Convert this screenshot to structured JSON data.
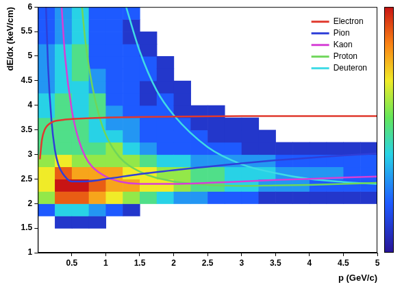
{
  "chart_data": {
    "type": "line",
    "x_label": "p (GeV/c)",
    "y_label": "dE/dx (keV/cm)",
    "xlim": [
      0,
      5
    ],
    "xticks": [
      0.5,
      1,
      1.5,
      2,
      2.5,
      3,
      3.5,
      4,
      4.5,
      5
    ],
    "ylim": [
      1,
      6
    ],
    "yticks": [
      1,
      1.5,
      2,
      2.5,
      3,
      3.5,
      4,
      4.5,
      5,
      5.5,
      6
    ],
    "grid": false,
    "legend": "upper right",
    "marker": "none",
    "line_style": "solid",
    "series": [
      {
        "name": "Electron",
        "color": "#e0392e",
        "x": [
          0.03,
          0.06,
          0.1,
          0.2,
          0.35,
          0.5,
          1,
          2,
          3,
          4,
          5
        ],
        "values": [
          2.9,
          3.3,
          3.5,
          3.65,
          3.7,
          3.72,
          3.75,
          3.77,
          3.78,
          3.78,
          3.78
        ]
      },
      {
        "name": "Pion",
        "color": "#2f3fd8",
        "x": [
          0.12,
          0.15,
          0.2,
          0.25,
          0.3,
          0.4,
          0.5,
          0.7,
          1,
          1.5,
          2,
          2.5,
          3,
          3.5,
          4,
          4.5,
          5
        ],
        "values": [
          6,
          4.8,
          3.7,
          3.1,
          2.8,
          2.55,
          2.45,
          2.45,
          2.5,
          2.6,
          2.68,
          2.75,
          2.82,
          2.88,
          2.93,
          2.98,
          3.02
        ]
      },
      {
        "name": "Kaon",
        "color": "#d63fd6",
        "x": [
          0.35,
          0.4,
          0.5,
          0.6,
          0.7,
          0.8,
          1,
          1.2,
          1.5,
          2,
          2.5,
          3,
          3.5,
          4,
          4.5,
          5
        ],
        "values": [
          6,
          5,
          3.9,
          3.3,
          2.95,
          2.75,
          2.55,
          2.45,
          2.4,
          2.4,
          2.42,
          2.45,
          2.48,
          2.5,
          2.53,
          2.55
        ]
      },
      {
        "name": "Proton",
        "color": "#6fd65a",
        "x": [
          0.65,
          0.7,
          0.8,
          0.9,
          1,
          1.2,
          1.5,
          2,
          2.5,
          3,
          3.5,
          4,
          4.5,
          5
        ],
        "values": [
          6,
          5.3,
          4.4,
          3.8,
          3.4,
          2.95,
          2.65,
          2.45,
          2.38,
          2.36,
          2.37,
          2.38,
          2.4,
          2.42
        ]
      },
      {
        "name": "Deuteron",
        "color": "#3fdbe6",
        "x": [
          1.3,
          1.5,
          1.75,
          2,
          2.5,
          3,
          3.5,
          4,
          4.5,
          5
        ],
        "values": [
          6,
          5.1,
          4.3,
          3.8,
          3.15,
          2.8,
          2.62,
          2.5,
          2.44,
          2.4
        ]
      }
    ],
    "density": {
      "bin_width": 0.25,
      "bin_height": 0.25,
      "range": [
        0,
        10
      ],
      "cells": [
        [
          0,
          1.75,
          2
        ],
        [
          0,
          2,
          6
        ],
        [
          0,
          2.25,
          7
        ],
        [
          0,
          2.5,
          7
        ],
        [
          0,
          2.75,
          6
        ],
        [
          0,
          3,
          5
        ],
        [
          0,
          3.25,
          5
        ],
        [
          0,
          3.5,
          5
        ],
        [
          0,
          3.75,
          4
        ],
        [
          0,
          4,
          4
        ],
        [
          0,
          4.25,
          3
        ],
        [
          0,
          4.5,
          3
        ],
        [
          0,
          4.75,
          3
        ],
        [
          0,
          5,
          3
        ],
        [
          0,
          5.25,
          2
        ],
        [
          0,
          5.5,
          2
        ],
        [
          0,
          5.75,
          2
        ],
        [
          0.25,
          1.5,
          1
        ],
        [
          0.25,
          1.75,
          4
        ],
        [
          0.25,
          2,
          9
        ],
        [
          0.25,
          2.25,
          10
        ],
        [
          0.25,
          2.5,
          9
        ],
        [
          0.25,
          2.75,
          7
        ],
        [
          0.25,
          3,
          5
        ],
        [
          0.25,
          3.25,
          5
        ],
        [
          0.25,
          3.5,
          5
        ],
        [
          0.25,
          3.75,
          5
        ],
        [
          0.25,
          4,
          5
        ],
        [
          0.25,
          4.25,
          4
        ],
        [
          0.25,
          4.5,
          4
        ],
        [
          0.25,
          4.75,
          4
        ],
        [
          0.25,
          5,
          4
        ],
        [
          0.25,
          5.25,
          3
        ],
        [
          0.25,
          5.5,
          3
        ],
        [
          0.25,
          5.75,
          3
        ],
        [
          0.5,
          1.5,
          1
        ],
        [
          0.5,
          1.75,
          4
        ],
        [
          0.5,
          2,
          9
        ],
        [
          0.5,
          2.25,
          10
        ],
        [
          0.5,
          2.5,
          8
        ],
        [
          0.5,
          2.75,
          6
        ],
        [
          0.5,
          3,
          5
        ],
        [
          0.5,
          3.25,
          5
        ],
        [
          0.5,
          3.5,
          5
        ],
        [
          0.5,
          3.75,
          4
        ],
        [
          0.5,
          4,
          4
        ],
        [
          0.5,
          4.25,
          4
        ],
        [
          0.5,
          4.5,
          5
        ],
        [
          0.5,
          4.75,
          5
        ],
        [
          0.5,
          5,
          5
        ],
        [
          0.5,
          5.25,
          4
        ],
        [
          0.5,
          5.5,
          4
        ],
        [
          0.5,
          5.75,
          4
        ],
        [
          0.75,
          1.5,
          1
        ],
        [
          0.75,
          1.75,
          3
        ],
        [
          0.75,
          2,
          8
        ],
        [
          0.75,
          2.25,
          9
        ],
        [
          0.75,
          2.5,
          8
        ],
        [
          0.75,
          2.75,
          6
        ],
        [
          0.75,
          3,
          5
        ],
        [
          0.75,
          3.25,
          4
        ],
        [
          0.75,
          3.5,
          4
        ],
        [
          0.75,
          3.75,
          5
        ],
        [
          0.75,
          4,
          5
        ],
        [
          0.75,
          4.25,
          3
        ],
        [
          0.75,
          4.5,
          3
        ],
        [
          0.75,
          4.75,
          2
        ],
        [
          0.75,
          5,
          2
        ],
        [
          0.75,
          5.25,
          2
        ],
        [
          0.75,
          5.5,
          2
        ],
        [
          0.75,
          5.75,
          2
        ],
        [
          1,
          1.75,
          2
        ],
        [
          1,
          2,
          7
        ],
        [
          1,
          2.25,
          8
        ],
        [
          1,
          2.5,
          8
        ],
        [
          1,
          2.75,
          6
        ],
        [
          1,
          3,
          6
        ],
        [
          1,
          3.25,
          4
        ],
        [
          1,
          3.5,
          3
        ],
        [
          1,
          3.75,
          3
        ],
        [
          1,
          4,
          2
        ],
        [
          1,
          4.25,
          2
        ],
        [
          1,
          4.5,
          2
        ],
        [
          1,
          4.75,
          2
        ],
        [
          1,
          5,
          2
        ],
        [
          1,
          5.25,
          2
        ],
        [
          1,
          5.5,
          2
        ],
        [
          1,
          5.75,
          2
        ],
        [
          1.25,
          1.75,
          1
        ],
        [
          1.25,
          2,
          6
        ],
        [
          1.25,
          2.25,
          8
        ],
        [
          1.25,
          2.5,
          7
        ],
        [
          1.25,
          2.75,
          6
        ],
        [
          1.25,
          3,
          4
        ],
        [
          1.25,
          3.25,
          3
        ],
        [
          1.25,
          3.5,
          3
        ],
        [
          1.25,
          3.75,
          2
        ],
        [
          1.25,
          4,
          2
        ],
        [
          1.25,
          4.25,
          2
        ],
        [
          1.25,
          4.5,
          2
        ],
        [
          1.25,
          4.75,
          2
        ],
        [
          1.25,
          5,
          2
        ],
        [
          1.25,
          5.25,
          1
        ],
        [
          1.25,
          5.5,
          1
        ],
        [
          1.25,
          5.75,
          2
        ],
        [
          1.5,
          2,
          5
        ],
        [
          1.5,
          2.25,
          7
        ],
        [
          1.5,
          2.5,
          7
        ],
        [
          1.5,
          2.75,
          5
        ],
        [
          1.5,
          3,
          3
        ],
        [
          1.5,
          3.25,
          2
        ],
        [
          1.5,
          3.5,
          2
        ],
        [
          1.5,
          3.75,
          2
        ],
        [
          1.5,
          4,
          1
        ],
        [
          1.5,
          4.25,
          1
        ],
        [
          1.5,
          4.5,
          2
        ],
        [
          1.5,
          4.75,
          2
        ],
        [
          1.5,
          5,
          1
        ],
        [
          1.5,
          5.25,
          1
        ],
        [
          1.75,
          2,
          4
        ],
        [
          1.75,
          2.25,
          7
        ],
        [
          1.75,
          2.5,
          6
        ],
        [
          1.75,
          2.75,
          4
        ],
        [
          1.75,
          3,
          2
        ],
        [
          1.75,
          3.25,
          2
        ],
        [
          1.75,
          3.5,
          2
        ],
        [
          1.75,
          3.75,
          2
        ],
        [
          1.75,
          4,
          2
        ],
        [
          1.75,
          4.25,
          1
        ],
        [
          1.75,
          4.5,
          1
        ],
        [
          1.75,
          4.75,
          1
        ],
        [
          2,
          2,
          3
        ],
        [
          2,
          2.25,
          6
        ],
        [
          2,
          2.5,
          6
        ],
        [
          2,
          2.75,
          4
        ],
        [
          2,
          3,
          2
        ],
        [
          2,
          3.25,
          2
        ],
        [
          2,
          3.5,
          2
        ],
        [
          2,
          3.75,
          1
        ],
        [
          2,
          4,
          1
        ],
        [
          2,
          4.25,
          1
        ],
        [
          2.25,
          2,
          3
        ],
        [
          2.25,
          2.25,
          5
        ],
        [
          2.25,
          2.5,
          5
        ],
        [
          2.25,
          2.75,
          3
        ],
        [
          2.25,
          3,
          2
        ],
        [
          2.25,
          3.25,
          2
        ],
        [
          2.25,
          3.5,
          1
        ],
        [
          2.25,
          3.75,
          1
        ],
        [
          2.5,
          2,
          2
        ],
        [
          2.5,
          2.25,
          5
        ],
        [
          2.5,
          2.5,
          5
        ],
        [
          2.5,
          2.75,
          3
        ],
        [
          2.5,
          3,
          2
        ],
        [
          2.5,
          3.25,
          1
        ],
        [
          2.5,
          3.5,
          1
        ],
        [
          2.5,
          3.75,
          1
        ],
        [
          2.75,
          2,
          2
        ],
        [
          2.75,
          2.25,
          4
        ],
        [
          2.75,
          2.5,
          4
        ],
        [
          2.75,
          2.75,
          3
        ],
        [
          2.75,
          3,
          2
        ],
        [
          2.75,
          3.25,
          1
        ],
        [
          2.75,
          3.5,
          1
        ],
        [
          3,
          2,
          2
        ],
        [
          3,
          2.25,
          4
        ],
        [
          3,
          2.5,
          4
        ],
        [
          3,
          2.75,
          3
        ],
        [
          3,
          3,
          1
        ],
        [
          3,
          3.25,
          1
        ],
        [
          3,
          3.5,
          1
        ],
        [
          3.25,
          2,
          1
        ],
        [
          3.25,
          2.25,
          3
        ],
        [
          3.25,
          2.5,
          4
        ],
        [
          3.25,
          2.75,
          3
        ],
        [
          3.25,
          3,
          1
        ],
        [
          3.25,
          3.25,
          1
        ],
        [
          3.5,
          2,
          1
        ],
        [
          3.5,
          2.25,
          3
        ],
        [
          3.5,
          2.5,
          3
        ],
        [
          3.5,
          2.75,
          2
        ],
        [
          3.5,
          3,
          1
        ],
        [
          3.75,
          2,
          1
        ],
        [
          3.75,
          2.25,
          3
        ],
        [
          3.75,
          2.5,
          3
        ],
        [
          3.75,
          2.75,
          2
        ],
        [
          3.75,
          3,
          1
        ],
        [
          4,
          2,
          1
        ],
        [
          4,
          2.25,
          2
        ],
        [
          4,
          2.5,
          3
        ],
        [
          4,
          2.75,
          2
        ],
        [
          4,
          3,
          1
        ],
        [
          4.25,
          2,
          1
        ],
        [
          4.25,
          2.25,
          2
        ],
        [
          4.25,
          2.5,
          3
        ],
        [
          4.25,
          2.75,
          2
        ],
        [
          4.25,
          3,
          1
        ],
        [
          4.5,
          2,
          1
        ],
        [
          4.5,
          2.25,
          2
        ],
        [
          4.5,
          2.5,
          2
        ],
        [
          4.5,
          2.75,
          2
        ],
        [
          4.5,
          3,
          1
        ],
        [
          4.75,
          2,
          1
        ],
        [
          4.75,
          2.25,
          2
        ],
        [
          4.75,
          2.5,
          2
        ],
        [
          4.75,
          2.75,
          2
        ],
        [
          4.75,
          3,
          1
        ]
      ]
    }
  }
}
